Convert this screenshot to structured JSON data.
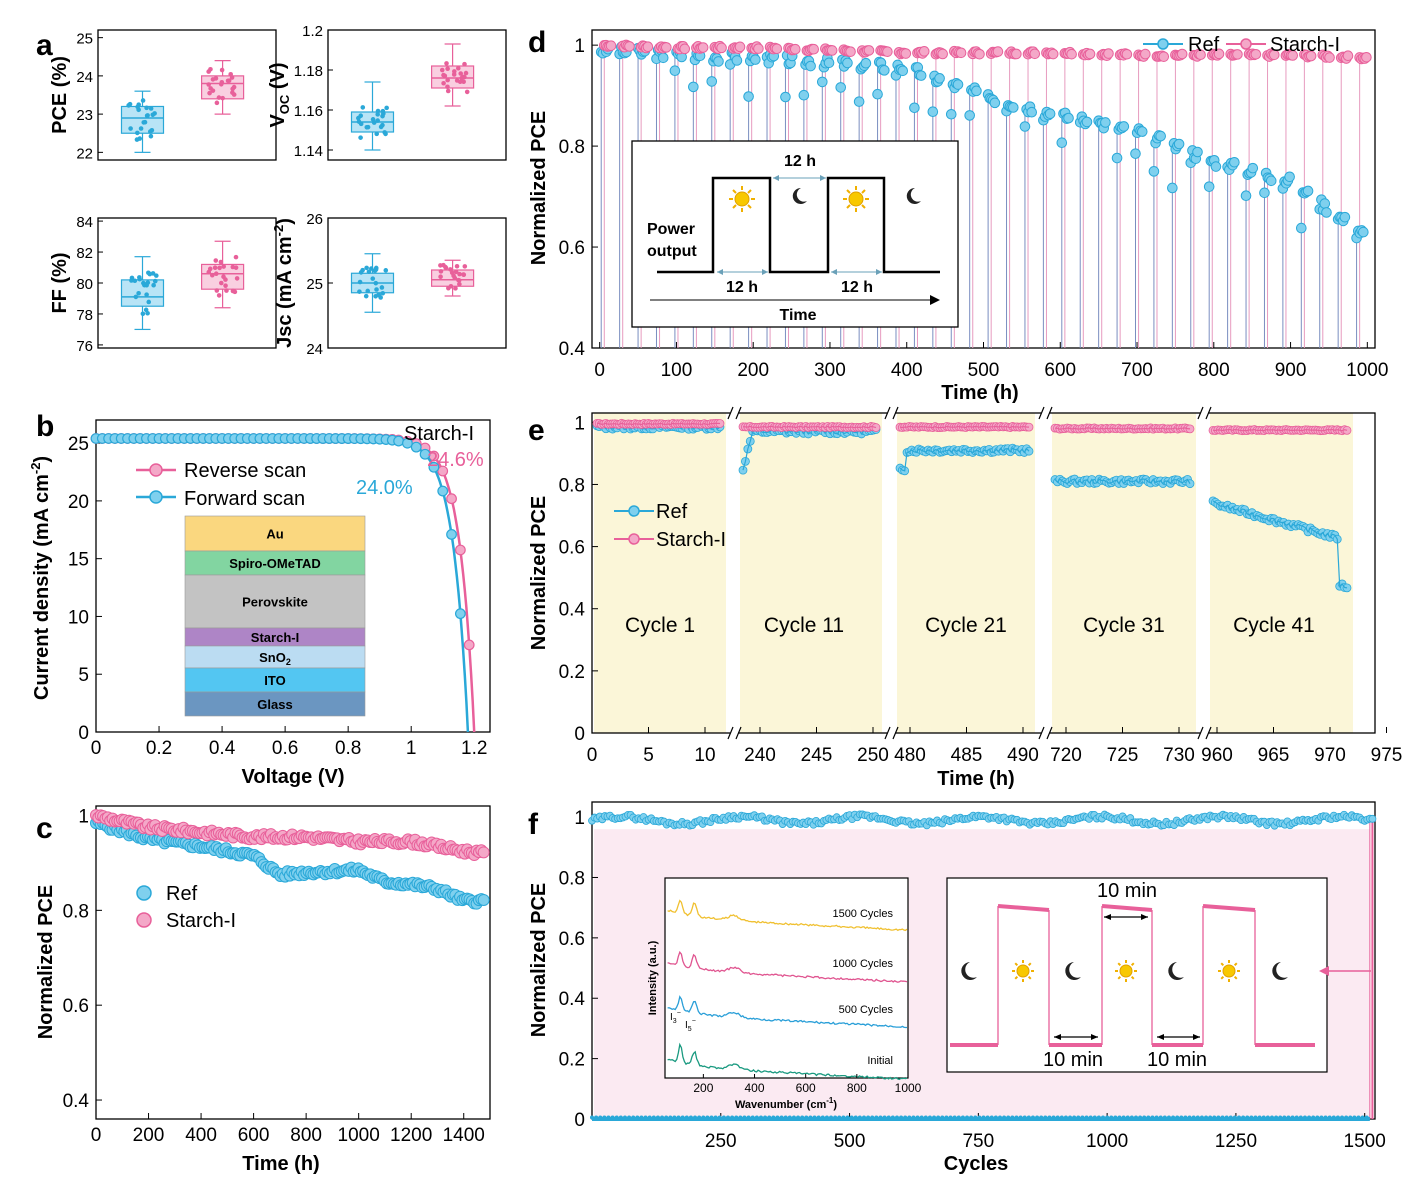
{
  "colors": {
    "ref": "#2aa8d8",
    "ref_fill": "#7fd0ee",
    "starch": "#e8609a",
    "starch_fill": "#f4a8c8",
    "cycle_bg": "#fbf6d8"
  },
  "panel_a": {
    "label": "a",
    "pce": {
      "ylabel": "PCE (%)",
      "yticks": [
        "22",
        "23",
        "24",
        "25"
      ],
      "chart_data": {
        "type": "box",
        "series": [
          {
            "name": "Ref",
            "min": 22.0,
            "q1": 22.5,
            "median": 22.9,
            "q3": 23.2,
            "max": 23.6
          },
          {
            "name": "Starch-I",
            "min": 23.0,
            "q1": 23.4,
            "median": 23.8,
            "q3": 24.0,
            "max": 24.4
          }
        ],
        "ylim": [
          21.8,
          25.2
        ]
      }
    },
    "voc": {
      "ylabel_main": "V",
      "ylabel_sub": "OC",
      "ylabel_unit": " (V)",
      "yticks": [
        "1.14",
        "1.16",
        "1.18",
        "1.2"
      ],
      "chart_data": {
        "type": "box",
        "series": [
          {
            "name": "Ref",
            "min": 1.14,
            "q1": 1.149,
            "median": 1.154,
            "q3": 1.159,
            "max": 1.174
          },
          {
            "name": "Starch-I",
            "min": 1.162,
            "q1": 1.171,
            "median": 1.176,
            "q3": 1.182,
            "max": 1.193
          }
        ],
        "ylim": [
          1.135,
          1.2
        ]
      }
    },
    "ff": {
      "ylabel": "FF (%)",
      "yticks": [
        "76",
        "78",
        "80",
        "82",
        "84"
      ],
      "chart_data": {
        "type": "box",
        "series": [
          {
            "name": "Ref",
            "min": 77.0,
            "q1": 78.5,
            "median": 79.1,
            "q3": 80.2,
            "max": 81.7
          },
          {
            "name": "Starch-I",
            "min": 78.4,
            "q1": 79.6,
            "median": 80.6,
            "q3": 81.2,
            "max": 82.7
          }
        ],
        "ylim": [
          75.8,
          84.2
        ]
      }
    },
    "jsc": {
      "ylabel_main": "Jsc (mA cm",
      "ylabel_sup": "-2",
      "ylabel_end": ")",
      "yticks": [
        "24",
        "25",
        "26"
      ],
      "chart_data": {
        "type": "box",
        "series": [
          {
            "name": "Ref",
            "min": 24.55,
            "q1": 24.85,
            "median": 25.0,
            "q3": 25.15,
            "max": 25.45
          },
          {
            "name": "Starch-I",
            "min": 24.8,
            "q1": 24.95,
            "median": 25.05,
            "q3": 25.2,
            "max": 25.35
          }
        ],
        "ylim": [
          24.0,
          26.0
        ]
      }
    }
  },
  "panel_b": {
    "label": "b",
    "title": "Starch-I",
    "xlabel": "Voltage (V)",
    "ylabel_main": "Current density (mA cm",
    "ylabel_sup": "-2",
    "ylabel_end": ")",
    "xticks": [
      "0",
      "0.2",
      "0.4",
      "0.6",
      "0.8",
      "1",
      "1.2"
    ],
    "yticks": [
      "0",
      "5",
      "10",
      "15",
      "20",
      "25"
    ],
    "legend": [
      "Reverse scan",
      "Forward scan"
    ],
    "pce_reverse": "24.6%",
    "pce_forward": "24.0%",
    "stack": [
      {
        "name": "Au",
        "color": "#fad77f"
      },
      {
        "name": "Spiro-OMeTAD",
        "color": "#82d5a1"
      },
      {
        "name": "Perovskite",
        "color": "#c3c3c3"
      },
      {
        "name": "Starch-I",
        "color": "#ae85c6"
      },
      {
        "name": "SnO",
        "sub": "2",
        "color": "#bbdcf2"
      },
      {
        "name": "ITO",
        "color": "#53c6f2"
      },
      {
        "name": "Glass",
        "color": "#6b96c1"
      }
    ],
    "chart_data": {
      "type": "line",
      "xlim": [
        0,
        1.25
      ],
      "ylim": [
        0,
        27
      ],
      "series": [
        {
          "name": "Reverse scan",
          "voc": 1.2,
          "jsc": 25.4,
          "ff": 0.81
        },
        {
          "name": "Forward scan",
          "voc": 1.18,
          "jsc": 25.4,
          "ff": 0.8
        }
      ]
    }
  },
  "panel_c": {
    "label": "c",
    "xlabel": "Time (h)",
    "ylabel": "Normalized PCE",
    "xticks": [
      "0",
      "200",
      "400",
      "600",
      "800",
      "1000",
      "1200",
      "1400"
    ],
    "yticks": [
      "0.4",
      "0.6",
      "0.8",
      "1"
    ],
    "legend": [
      "Ref",
      "Starch-I"
    ],
    "chart_data": {
      "type": "scatter",
      "xlim": [
        0,
        1500
      ],
      "ylim": [
        0.36,
        1.02
      ],
      "series": [
        {
          "name": "Ref",
          "x": [
            0,
            200,
            400,
            600,
            700,
            800,
            1000,
            1100,
            1200,
            1300,
            1400,
            1480
          ],
          "y": [
            0.985,
            0.95,
            0.935,
            0.915,
            0.875,
            0.88,
            0.885,
            0.86,
            0.855,
            0.845,
            0.82,
            0.82
          ]
        },
        {
          "name": "Starch-I",
          "x": [
            0,
            200,
            400,
            600,
            800,
            1000,
            1200,
            1300,
            1400,
            1480
          ],
          "y": [
            1.0,
            0.975,
            0.965,
            0.955,
            0.955,
            0.945,
            0.945,
            0.935,
            0.925,
            0.92
          ]
        }
      ]
    }
  },
  "panel_d": {
    "label": "d",
    "xlabel": "Time (h)",
    "ylabel": "Normalized PCE",
    "xticks": [
      "0",
      "100",
      "200",
      "300",
      "400",
      "500",
      "600",
      "700",
      "800",
      "900",
      "1000"
    ],
    "yticks": [
      "0.4",
      "0.6",
      "0.8",
      "1"
    ],
    "legend": [
      "Ref",
      "Starch-I"
    ],
    "inset": {
      "power_label_1": "Power",
      "power_label_2": "output",
      "time_label": "Time",
      "period_top": "12 h",
      "period_b1": "12 h",
      "period_b2": "12 h"
    },
    "chart_data": {
      "type": "line",
      "xlim": [
        -10,
        1010
      ],
      "ylim": [
        0.4,
        1.03
      ],
      "series": [
        {
          "name": "Ref",
          "x": [
            0,
            100,
            200,
            300,
            400,
            500,
            600,
            700,
            800,
            900,
            1000
          ],
          "y": [
            0.99,
            0.98,
            0.975,
            0.965,
            0.955,
            0.9,
            0.86,
            0.83,
            0.77,
            0.73,
            0.62
          ]
        },
        {
          "name": "Starch-I",
          "x": [
            0,
            100,
            200,
            300,
            400,
            500,
            600,
            700,
            800,
            900,
            1000
          ],
          "y": [
            1.0,
            0.995,
            0.995,
            0.99,
            0.985,
            0.985,
            0.985,
            0.98,
            0.98,
            0.98,
            0.975
          ]
        }
      ]
    }
  },
  "panel_e": {
    "label": "e",
    "xlabel": "Time (h)",
    "ylabel": "Normalized PCE",
    "yticks": [
      "0",
      "0.2",
      "0.4",
      "0.6",
      "0.8",
      "1"
    ],
    "legend": [
      "Ref",
      "Starch-I"
    ],
    "segments": [
      {
        "label": "Cycle 1",
        "ticks": [
          "0",
          "5",
          "10"
        ]
      },
      {
        "label": "Cycle 11",
        "ticks": [
          "240",
          "245",
          "250"
        ]
      },
      {
        "label": "Cycle 21",
        "ticks": [
          "480",
          "485",
          "490"
        ]
      },
      {
        "label": "Cycle 31",
        "ticks": [
          "720",
          "725",
          "730"
        ]
      },
      {
        "label": "Cycle 41",
        "ticks": [
          "960",
          "965",
          "970",
          "975"
        ]
      }
    ],
    "chart_data": {
      "type": "line",
      "ylim": [
        0,
        1.03
      ],
      "series": [
        {
          "name": "Ref",
          "cycle_levels": [
            0.985,
            0.97,
            0.91,
            0.81,
            0.64
          ]
        },
        {
          "name": "Starch-I",
          "cycle_levels": [
            0.995,
            0.985,
            0.985,
            0.98,
            0.975
          ]
        }
      ]
    }
  },
  "panel_f": {
    "label": "f",
    "xlabel": "Cycles",
    "ylabel": "Normalized PCE",
    "xticks": [
      "250",
      "500",
      "750",
      "1000",
      "1250",
      "1500"
    ],
    "yticks": [
      "0",
      "0.2",
      "0.4",
      "0.6",
      "0.8",
      "1"
    ],
    "raman": {
      "ylabel": "Intensity (a.u.)",
      "xlabel_main": "Wavenumber (cm",
      "xlabel_sup": "-1",
      "xlabel_end": ")",
      "xticks": [
        "200",
        "400",
        "600",
        "800",
        "1000"
      ],
      "traces": [
        {
          "name": "1500 Cycles",
          "color": "#f0c030"
        },
        {
          "name": "1000 Cycles",
          "color": "#e05590"
        },
        {
          "name": "500 Cycles",
          "color": "#2a9fd8"
        },
        {
          "name": "Initial",
          "color": "#1a9a80"
        }
      ],
      "peak1_main": "I",
      "peak1_sub": "3",
      "peak1_sup": "−",
      "peak2_main": "I",
      "peak2_sub": "5",
      "peak2_sup": "−"
    },
    "inset_period_top": "10 min",
    "inset_period_b1": "10 min",
    "inset_period_b2": "10 min",
    "chart_data": {
      "type": "scatter",
      "xlim": [
        0,
        1520
      ],
      "ylim": [
        0,
        1.05
      ],
      "series": [
        {
          "name": "Ref",
          "light_level": 0.99,
          "dark_level": 0.0,
          "cycles": 1520
        },
        {
          "name": "Starch-I",
          "light_level": 1.0,
          "dark_level": 0.0,
          "cycles": 1520
        }
      ]
    }
  }
}
